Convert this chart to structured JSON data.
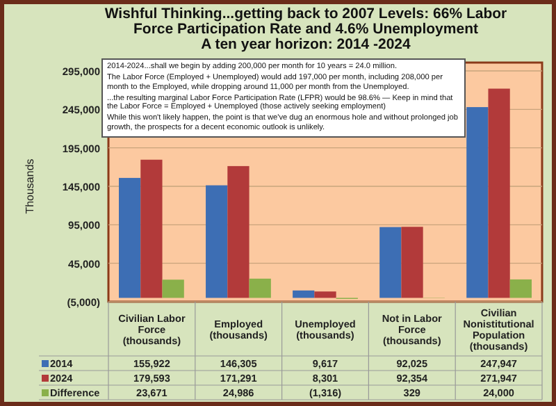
{
  "chart_data": {
    "type": "bar",
    "title": "Wishful Thinking...getting back to 2007 Levels: 66% Labor Force Participation Rate and 4.6% Unemployment",
    "subtitle": "A ten year horizon: 2014 -2024",
    "ylabel": "Thousands",
    "categories": [
      "Civilian Labor Force (thousands)",
      "Employed (thousands)",
      "Unemployed (thousands)",
      "Not in Labor Force (thousands)",
      "Civilian Nonistitutional Population (thousands)"
    ],
    "series": [
      {
        "name": "2014",
        "color": "#3d6eb4",
        "values": [
          155922,
          146305,
          9617,
          92025,
          247947
        ],
        "value_labels": [
          "155,922",
          "146,305",
          "9,617",
          "92,025",
          "247,947"
        ]
      },
      {
        "name": "2024",
        "color": "#b23a3a",
        "values": [
          179593,
          171291,
          8301,
          92354,
          271947
        ],
        "value_labels": [
          "179,593",
          "171,291",
          "8,301",
          "92,354",
          "271,947"
        ]
      },
      {
        "name": "Difference",
        "color": "#8ab04a",
        "values": [
          23671,
          24986,
          -1316,
          329,
          24000
        ],
        "value_labels": [
          "23,671",
          "24,986",
          "(1,316)",
          "329",
          "24,000"
        ]
      }
    ],
    "ylim": [
      -5000,
      295000
    ],
    "yticks": [
      {
        "value": -5000,
        "label": "(5,000)"
      },
      {
        "value": 45000,
        "label": "45,000"
      },
      {
        "value": 95000,
        "label": "95,000"
      },
      {
        "value": 145000,
        "label": "145,000"
      },
      {
        "value": 195000,
        "label": "195,000"
      },
      {
        "value": 245000,
        "label": "245,000"
      },
      {
        "value": 295000,
        "label": "295,000"
      }
    ],
    "grid": "y",
    "legend": "bottom left",
    "annotations": [
      "2014-2024...shall we begin by adding 200,000 per month for 10 years = 24.0 million.",
      "The Labor Force (Employed + Unemployed) would add 197,000 per month, including 208,000 per month to the Employed, while dropping around 11,000 per month from the Unemployed.",
      "...the resulting marginal Labor Force Participation Rate (LFPR) would be 98.6% — Keep in mind that the Labor Force = Employed + Unemployed (those actively seeking employment)",
      "While this won't likely happen, the point is that we've dug an enormous hole and without prolonged job growth, the prospects for a decent economic outlook is unlikely."
    ]
  }
}
